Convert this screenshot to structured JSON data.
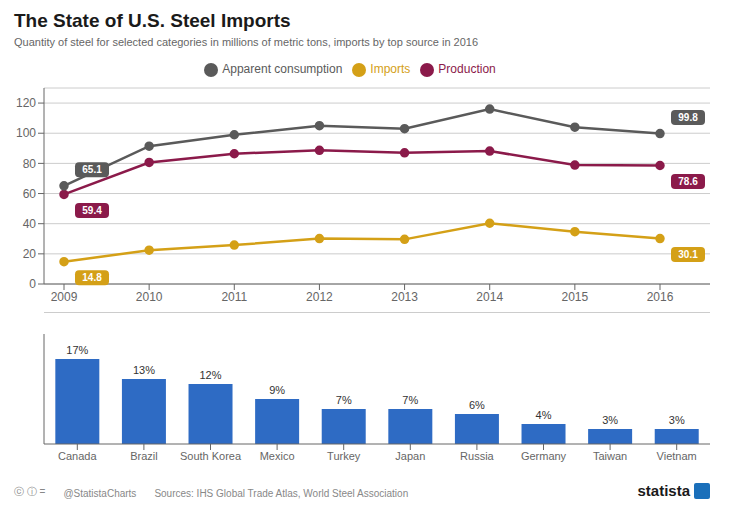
{
  "chart_data": [
    {
      "type": "line",
      "title": "The State of U.S. Steel Imports",
      "subtitle": "Quantity of steel for selected categories in millions of metric tons, imports by top source in 2016",
      "categories": [
        "2009",
        "2010",
        "2011",
        "2012",
        "2013",
        "2014",
        "2015",
        "2016"
      ],
      "series": [
        {
          "name": "Production",
          "color": "#8B1A4A",
          "marker": "circle",
          "values": [
            59.4,
            80.6,
            86.4,
            88.7,
            87.0,
            88.2,
            78.9,
            78.6
          ]
        },
        {
          "name": "Apparent consumption",
          "color": "#5A5A5A",
          "marker": "circle",
          "values": [
            65.1,
            91.4,
            99.0,
            105.0,
            103.0,
            116.0,
            104.0,
            99.8
          ]
        },
        {
          "name": "Imports",
          "color": "#D4A017",
          "marker": "circle",
          "values": [
            14.8,
            22.4,
            25.8,
            30.1,
            29.6,
            40.3,
            34.7,
            30.1
          ]
        }
      ],
      "ylim": [
        0,
        130
      ],
      "yticks": [
        0,
        20,
        40,
        60,
        80,
        100,
        120
      ],
      "grid": true,
      "legend": "top",
      "annotations": [
        {
          "text": "59.4",
          "x": "2009",
          "y": 59.4,
          "series": "Production"
        },
        {
          "text": "78.6",
          "x": "2016",
          "y": 78.6,
          "series": "Production"
        },
        {
          "text": "65.1",
          "x": "2009",
          "y": 65.1,
          "series": "Apparent consumption"
        },
        {
          "text": "99.8",
          "x": "2016",
          "y": 99.8,
          "series": "Apparent consumption"
        },
        {
          "text": "14.8",
          "x": "2009",
          "y": 14.8,
          "series": "Imports"
        },
        {
          "text": "30.1",
          "x": "2016",
          "y": 30.1,
          "series": "Imports"
        }
      ]
    },
    {
      "type": "bar",
      "categories": [
        "Canada",
        "Brazil",
        "South Korea",
        "Mexico",
        "Turkey",
        "Japan",
        "Russia",
        "Germany",
        "Taiwan",
        "Vietnam"
      ],
      "values": [
        17,
        13,
        12,
        9,
        7,
        7,
        6,
        4,
        3,
        3
      ],
      "value_labels": [
        "17%",
        "13%",
        "12%",
        "9%",
        "7%",
        "7%",
        "6%",
        "4%",
        "3%",
        "3%"
      ],
      "color": "#2E6BC4",
      "ylim": [
        0,
        22
      ],
      "grid": false,
      "data_labels": true,
      "tick_labels": "x",
      "annotations": [
        {
          "text": "ⓒ ⓘ ="
        },
        {
          "text": "@StatistaCharts"
        },
        {
          "text": "Sources: IHS Global Trade Atlas, World Steel Association"
        },
        {
          "text": "statista"
        }
      ]
    }
  ]
}
